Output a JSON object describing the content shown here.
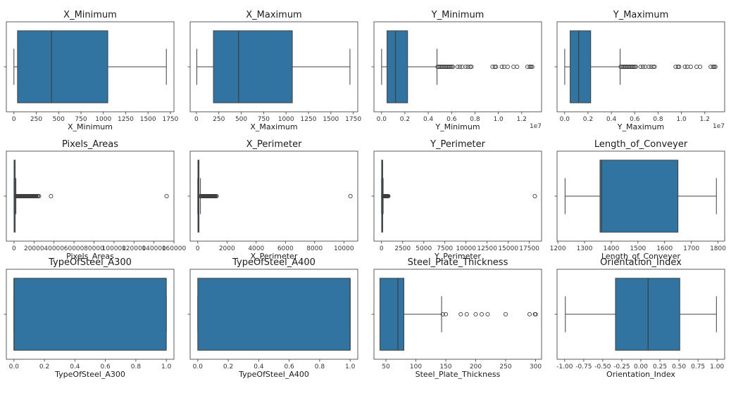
{
  "colors": {
    "box": "#3274a1",
    "line": "#3f3f3f",
    "frame": "#333333",
    "outlier": "#3f3f3f"
  },
  "chart_data": [
    {
      "type": "box",
      "title": "X_Minimum",
      "xlabel": "X_Minimum",
      "xlim": [
        -85,
        1790
      ],
      "ticks": [
        0,
        250,
        500,
        750,
        1000,
        1250,
        1500,
        1750
      ],
      "tick_labels": [
        "0",
        "250",
        "500",
        "750",
        "1000",
        "1250",
        "1500",
        "1750"
      ],
      "offset_label": "",
      "whisker_low": 0,
      "q1": 40,
      "median": 420,
      "q3": 1050,
      "whisker_high": 1705,
      "outliers": []
    },
    {
      "type": "box",
      "title": "X_Maximum",
      "xlabel": "X_Maximum",
      "xlim": [
        -70,
        1800
      ],
      "ticks": [
        0,
        250,
        500,
        750,
        1000,
        1250,
        1500,
        1750
      ],
      "tick_labels": [
        "0",
        "250",
        "500",
        "750",
        "1000",
        "1250",
        "1500",
        "1750"
      ],
      "offset_label": "",
      "whisker_low": 4,
      "q1": 190,
      "median": 470,
      "q3": 1070,
      "whisker_high": 1713,
      "outliers": []
    },
    {
      "type": "box",
      "title": "Y_Minimum",
      "xlabel": "Y_Minimum",
      "xlim": [
        -650000,
        13700000
      ],
      "ticks": [
        0,
        2000000,
        4000000,
        6000000,
        8000000,
        10000000,
        12000000
      ],
      "tick_labels": [
        "0.0",
        "0.2",
        "0.4",
        "0.6",
        "0.8",
        "1.0",
        "1.2"
      ],
      "offset_label": "1e7",
      "whisker_low": 6700,
      "q1": 470000,
      "median": 1200000,
      "q3": 2230000,
      "whisker_high": 4750000,
      "outliers": [
        4800000,
        4900000,
        5000000,
        5100000,
        5200000,
        5300000,
        5400000,
        5500000,
        5600000,
        5700000,
        5800000,
        5900000,
        6000000,
        6100000,
        6500000,
        6700000,
        6900000,
        7200000,
        7400000,
        7600000,
        7700000,
        9500000,
        9700000,
        9800000,
        10300000,
        10500000,
        10800000,
        11300000,
        11600000,
        12500000,
        12700000,
        12800000,
        12900000
      ]
    },
    {
      "type": "box",
      "title": "Y_Maximum",
      "xlabel": "Y_Maximum",
      "xlim": [
        -650000,
        13700000
      ],
      "ticks": [
        0,
        2000000,
        4000000,
        6000000,
        8000000,
        10000000,
        12000000
      ],
      "tick_labels": [
        "0.0",
        "0.2",
        "0.4",
        "0.6",
        "0.8",
        "1.0",
        "1.2"
      ],
      "offset_label": "1e7",
      "whisker_low": 6700,
      "q1": 470000,
      "median": 1200000,
      "q3": 2230000,
      "whisker_high": 4750000,
      "outliers": [
        4800000,
        4900000,
        5000000,
        5100000,
        5200000,
        5300000,
        5400000,
        5500000,
        5600000,
        5700000,
        5800000,
        5900000,
        6000000,
        6100000,
        6500000,
        6700000,
        6900000,
        7200000,
        7400000,
        7600000,
        7700000,
        9500000,
        9700000,
        9800000,
        10300000,
        10500000,
        10800000,
        11300000,
        11600000,
        12500000,
        12700000,
        12800000,
        12900000
      ]
    },
    {
      "type": "box",
      "title": "Pixels_Areas",
      "xlabel": "Pixels_Areas",
      "xlim": [
        -7700,
        160000
      ],
      "ticks": [
        0,
        20000,
        40000,
        60000,
        80000,
        100000,
        120000,
        140000,
        160000
      ],
      "tick_labels": [
        "0",
        "20000",
        "40000",
        "60000",
        "80000",
        "100000",
        "120000",
        "140000",
        "160000"
      ],
      "offset_label": "",
      "whisker_low": 2,
      "q1": 84,
      "median": 174,
      "q3": 822,
      "whisker_high": 1900,
      "outliers": [
        2000,
        2500,
        3000,
        3500,
        4000,
        4500,
        5000,
        5500,
        6000,
        6500,
        7000,
        7500,
        8000,
        8500,
        9000,
        9500,
        10000,
        10500,
        11000,
        11500,
        12000,
        12500,
        13000,
        13500,
        14000,
        14500,
        15000,
        15500,
        16000,
        16500,
        17000,
        17500,
        18000,
        18500,
        19000,
        19500,
        20000,
        20500,
        21000,
        21500,
        22000,
        23000,
        24000,
        25000,
        37000,
        152655
      ]
    },
    {
      "type": "box",
      "title": "X_Perimeter",
      "xlabel": "X_Perimeter",
      "xlim": [
        -520,
        10950
      ],
      "ticks": [
        0,
        2000,
        4000,
        6000,
        8000,
        10000
      ],
      "tick_labels": [
        "0",
        "2000",
        "4000",
        "6000",
        "8000",
        "10000"
      ],
      "offset_label": "",
      "whisker_low": 2,
      "q1": 15,
      "median": 26,
      "q3": 84,
      "whisker_high": 185,
      "outliers": [
        190,
        220,
        260,
        300,
        340,
        380,
        420,
        460,
        500,
        540,
        580,
        620,
        660,
        700,
        740,
        780,
        820,
        860,
        900,
        940,
        980,
        1020,
        1060,
        1100,
        1140,
        1180,
        1230,
        1290,
        10449
      ]
    },
    {
      "type": "box",
      "title": "Y_Perimeter",
      "xlabel": "Y_Perimeter",
      "xlim": [
        -900,
        18950
      ],
      "ticks": [
        0,
        2500,
        5000,
        7500,
        10000,
        12500,
        15000,
        17500
      ],
      "tick_labels": [
        "0",
        "2500",
        "5000",
        "7500",
        "10000",
        "12500",
        "15000",
        "17500"
      ],
      "offset_label": "",
      "whisker_low": 1,
      "q1": 13,
      "median": 26,
      "q3": 84,
      "whisker_high": 190,
      "outliers": [
        200,
        250,
        300,
        350,
        400,
        450,
        500,
        550,
        600,
        650,
        700,
        750,
        800,
        18152
      ]
    },
    {
      "type": "box",
      "title": "Length_of_Conveyer",
      "xlabel": "Length_of_Conveyer",
      "xlim": [
        1197,
        1825
      ],
      "ticks": [
        1200,
        1300,
        1400,
        1500,
        1600,
        1700,
        1800
      ],
      "tick_labels": [
        "1200",
        "1300",
        "1400",
        "1500",
        "1600",
        "1700",
        "1800"
      ],
      "offset_label": "",
      "whisker_low": 1227,
      "q1": 1358,
      "median": 1364,
      "q3": 1650,
      "whisker_high": 1794,
      "outliers": []
    },
    {
      "type": "box",
      "title": "TypeOfSteel_A300",
      "xlabel": "TypeOfSteel_A300",
      "xlim": [
        -0.05,
        1.05
      ],
      "ticks": [
        0,
        0.2,
        0.4,
        0.6,
        0.8,
        1.0
      ],
      "tick_labels": [
        "0.0",
        "0.2",
        "0.4",
        "0.6",
        "0.8",
        "1.0"
      ],
      "offset_label": "",
      "whisker_low": 0,
      "q1": 0,
      "median": 0,
      "q3": 1,
      "whisker_high": 1,
      "outliers": []
    },
    {
      "type": "box",
      "title": "TypeOfSteel_A400",
      "xlabel": "TypeOfSteel_A400",
      "xlim": [
        -0.05,
        1.05
      ],
      "ticks": [
        0,
        0.2,
        0.4,
        0.6,
        0.8,
        1.0
      ],
      "tick_labels": [
        "0.0",
        "0.2",
        "0.4",
        "0.6",
        "0.8",
        "1.0"
      ],
      "offset_label": "",
      "whisker_low": 0,
      "q1": 0,
      "median": 1,
      "q3": 1,
      "whisker_high": 1,
      "outliers": []
    },
    {
      "type": "box",
      "title": "Steel_Plate_Thickness",
      "xlabel": "Steel_Plate_Thickness",
      "xlim": [
        30,
        310
      ],
      "ticks": [
        50,
        100,
        150,
        200,
        250,
        300
      ],
      "tick_labels": [
        "50",
        "100",
        "150",
        "200",
        "250",
        "300"
      ],
      "offset_label": "",
      "whisker_low": 40,
      "q1": 40,
      "median": 70,
      "q3": 80,
      "whisker_high": 143,
      "outliers": [
        145,
        150,
        175,
        185,
        200,
        210,
        220,
        250,
        290,
        299,
        300
      ]
    },
    {
      "type": "box",
      "title": "Orientation_Index",
      "xlabel": "Orientation_Index",
      "xlim": [
        -1.1,
        1.1
      ],
      "ticks": [
        -1.0,
        -0.75,
        -0.5,
        -0.25,
        0,
        0.25,
        0.5,
        0.75,
        1.0
      ],
      "tick_labels": [
        "-1.00",
        "-0.75",
        "-0.50",
        "-0.25",
        "0.00",
        "0.25",
        "0.50",
        "0.75",
        "1.00"
      ],
      "offset_label": "",
      "whisker_low": -0.991,
      "q1": -0.333,
      "median": 0.095,
      "q3": 0.511,
      "whisker_high": 0.992,
      "outliers": []
    }
  ]
}
